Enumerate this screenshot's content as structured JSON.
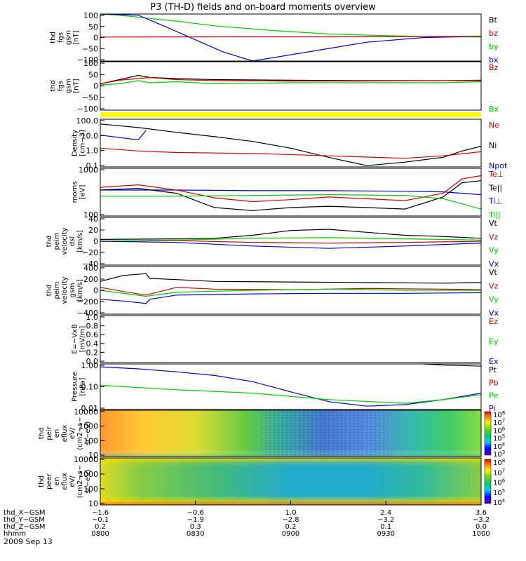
{
  "title": "P3 (TH-D) fields and on-board moments overview",
  "date_label": "2009 Sep 13",
  "colors": {
    "black": "#000000",
    "red": "#cc0000",
    "green": "#00cc00",
    "blue": "#0000cc",
    "yellow": "#ffff00"
  },
  "chart_data": [
    {
      "type": "line",
      "ylabel": [
        "thd",
        "fgs",
        "gsm",
        "[nT]"
      ],
      "yticks": [
        "100",
        "50",
        "0",
        "−50",
        "−100"
      ],
      "ylim": [
        -100,
        100
      ],
      "legend": [
        {
          "name": "Bt",
          "color": "black"
        },
        {
          "name": "bz",
          "color": "red"
        },
        {
          "name": "by",
          "color": "green"
        },
        {
          "name": "bx",
          "color": "blue"
        }
      ],
      "series": [
        {
          "name": "by",
          "color": "green",
          "x": [
            0.0,
            0.5,
            2.0,
            3.0,
            4.5,
            6.0,
            7.5,
            9.0,
            10.0
          ],
          "y": [
            100,
            95,
            70,
            50,
            30,
            15,
            8,
            3,
            2
          ]
        },
        {
          "name": "bx",
          "color": "blue",
          "x": [
            0.0,
            1.0,
            1.8,
            2.5,
            3.2,
            4.0,
            5.5,
            7.0,
            8.5,
            10.0
          ],
          "y": [
            100,
            95,
            40,
            -10,
            -60,
            -100,
            -60,
            -20,
            0,
            5
          ]
        },
        {
          "name": "bz",
          "color": "red",
          "x": [
            0.0,
            3.0,
            6.0,
            10.0
          ],
          "y": [
            2,
            3,
            3,
            5
          ]
        }
      ]
    },
    {
      "type": "line",
      "ylabel": [
        "thd",
        "fgs",
        "gsm",
        "[nT]"
      ],
      "yticks": [
        "100",
        "50",
        "0",
        "−50",
        "−100"
      ],
      "ylim": [
        -120,
        110
      ],
      "legend": [
        {
          "name": "Bz",
          "color": "red"
        },
        {
          "name": "Bx",
          "color": "green"
        }
      ],
      "series": [
        {
          "name": "Bt",
          "color": "black",
          "x": [
            0.0,
            0.5,
            1.0,
            1.3,
            2.0,
            3.0,
            5.0,
            7.0,
            9.0,
            10.0
          ],
          "y": [
            5,
            25,
            45,
            35,
            30,
            25,
            22,
            20,
            20,
            22
          ]
        },
        {
          "name": "Bz",
          "color": "red",
          "x": [
            0.0,
            0.5,
            1.0,
            1.3,
            2.0,
            3.0,
            5.0,
            7.0,
            9.0,
            10.0
          ],
          "y": [
            5,
            22,
            30,
            35,
            25,
            20,
            18,
            18,
            20,
            20
          ]
        },
        {
          "name": "Bx",
          "color": "green",
          "x": [
            0.0,
            0.5,
            1.0,
            1.3,
            2.0,
            3.0,
            5.0,
            7.0,
            9.0,
            10.0
          ],
          "y": [
            0,
            5,
            20,
            10,
            15,
            5,
            10,
            10,
            10,
            15
          ]
        }
      ]
    },
    {
      "type": "line",
      "ylabel": [
        "Density",
        "[cm−3]"
      ],
      "yticks": [
        "100.0",
        "10.0",
        "1.0",
        "0.1"
      ],
      "ylim": [
        0.1,
        100
      ],
      "legend": [
        {
          "name": "Ne",
          "color": "red"
        },
        {
          "name": "Ni",
          "color": "black"
        },
        {
          "name": "Npot",
          "color": "blue"
        }
      ],
      "series": [
        {
          "name": "Ni",
          "color": "black",
          "x": [
            0.0,
            1.0,
            2.0,
            3.0,
            4.0,
            5.0,
            6.0,
            7.0,
            8.0,
            9.0,
            9.5,
            10.0
          ],
          "y": [
            50,
            30,
            15,
            8,
            4,
            1.5,
            0.4,
            0.12,
            0.2,
            0.4,
            1.0,
            2.0
          ]
        },
        {
          "name": "Ne",
          "color": "red",
          "x": [
            0.0,
            1.0,
            2.0,
            4.0,
            6.0,
            8.0,
            9.0,
            10.0
          ],
          "y": [
            1.5,
            1.0,
            0.8,
            0.7,
            0.5,
            0.35,
            0.5,
            0.9
          ]
        },
        {
          "name": "Npot",
          "color": "blue",
          "x": [
            0.0,
            1.0,
            1.2
          ],
          "y": [
            10,
            5,
            20
          ]
        }
      ]
    },
    {
      "type": "line",
      "ylabel": [
        "moms",
        "[eV]"
      ],
      "yticks": [
        "1000",
        "100"
      ],
      "ylim": [
        100,
        1000
      ],
      "legend": [
        {
          "name": "Te⊥",
          "color": "red"
        },
        {
          "name": "Te||",
          "color": "black"
        },
        {
          "name": "Ti⊥",
          "color": "blue"
        },
        {
          "name": "Ti||",
          "color": "green"
        }
      ],
      "series": [
        {
          "name": "Ti⊥",
          "color": "blue",
          "x": [
            0.0,
            2.0,
            4.0,
            6.0,
            8.0,
            9.0,
            9.5,
            10.0
          ],
          "y": [
            350,
            350,
            340,
            340,
            330,
            320,
            300,
            280
          ]
        },
        {
          "name": "Te⊥",
          "color": "red",
          "x": [
            0.0,
            1.0,
            2.0,
            3.0,
            4.0,
            5.0,
            6.0,
            7.0,
            8.0,
            9.0,
            9.5,
            10.0
          ],
          "y": [
            400,
            450,
            350,
            240,
            200,
            220,
            250,
            230,
            210,
            300,
            600,
            700
          ]
        },
        {
          "name": "Te||",
          "color": "black",
          "x": [
            0.0,
            1.0,
            2.0,
            3.0,
            4.0,
            5.0,
            6.0,
            7.0,
            8.0,
            9.0,
            9.5,
            10.0
          ],
          "y": [
            350,
            380,
            300,
            150,
            130,
            150,
            160,
            150,
            140,
            250,
            500,
            550
          ]
        },
        {
          "name": "Ti||",
          "color": "green",
          "x": [
            0.0,
            2.0,
            4.0,
            6.0,
            8.0,
            9.0,
            10.0
          ],
          "y": [
            260,
            260,
            270,
            280,
            270,
            230,
            140
          ]
        }
      ]
    },
    {
      "type": "line",
      "ylabel": [
        "thd",
        "peim",
        "velocity",
        "dsl",
        "[km/s]"
      ],
      "yticks": [
        "40",
        "20",
        "0",
        "−20",
        "−40"
      ],
      "ylim": [
        -40,
        40
      ],
      "legend": [
        {
          "name": "Vt",
          "color": "black"
        },
        {
          "name": "Vz",
          "color": "red"
        },
        {
          "name": "Vy",
          "color": "green"
        },
        {
          "name": "Vx",
          "color": "blue"
        }
      ],
      "series": [
        {
          "name": "Vt",
          "color": "black",
          "x": [
            0.0,
            2.0,
            3.0,
            4.0,
            5.0,
            6.0,
            7.0,
            8.0,
            9.0,
            10.0
          ],
          "y": [
            3,
            4,
            5,
            10,
            18,
            20,
            15,
            10,
            8,
            5
          ]
        },
        {
          "name": "Vz",
          "color": "red",
          "x": [
            0.0,
            2.0,
            4.0,
            6.0,
            8.0,
            10.0
          ],
          "y": [
            0,
            1,
            -2,
            -3,
            -2,
            0
          ]
        },
        {
          "name": "Vy",
          "color": "green",
          "x": [
            0.0,
            2.0,
            4.0,
            6.0,
            8.0,
            10.0
          ],
          "y": [
            0,
            2,
            5,
            6,
            4,
            2
          ]
        },
        {
          "name": "Vx",
          "color": "blue",
          "x": [
            0.0,
            2.0,
            4.0,
            6.0,
            8.0,
            10.0
          ],
          "y": [
            0,
            -2,
            -8,
            -12,
            -8,
            -3
          ]
        }
      ]
    },
    {
      "type": "line",
      "ylabel": [
        "thd",
        "peim",
        "velocity",
        "gsm",
        "[km/s]"
      ],
      "yticks": [
        "400",
        "200",
        "0",
        "−200",
        "−400"
      ],
      "ylim": [
        -400,
        400
      ],
      "legend": [
        {
          "name": "Vt",
          "color": "black"
        },
        {
          "name": "Vz",
          "color": "red"
        },
        {
          "name": "Vy",
          "color": "green"
        },
        {
          "name": "Vx",
          "color": "blue"
        }
      ],
      "series": [
        {
          "name": "Vt",
          "color": "black",
          "x": [
            0.0,
            0.6,
            1.2,
            1.3,
            2.0,
            3.0,
            5.0,
            7.0,
            9.0,
            10.0
          ],
          "y": [
            150,
            250,
            280,
            200,
            180,
            150,
            140,
            130,
            120,
            130
          ]
        },
        {
          "name": "Vz",
          "color": "red",
          "x": [
            0.0,
            0.6,
            1.2,
            2.0,
            3.0,
            5.0,
            7.0,
            9.0,
            10.0
          ],
          "y": [
            50,
            -20,
            -80,
            50,
            20,
            10,
            30,
            20,
            10
          ]
        },
        {
          "name": "Vy",
          "color": "green",
          "x": [
            0.0,
            1.2,
            2.0,
            4.0,
            6.0,
            8.0,
            10.0
          ],
          "y": [
            0,
            -100,
            -30,
            0,
            20,
            0,
            0
          ]
        },
        {
          "name": "Vx",
          "color": "blue",
          "x": [
            0.0,
            0.6,
            1.2,
            1.3,
            2.0,
            4.0,
            6.0,
            8.0,
            10.0
          ],
          "y": [
            -150,
            -180,
            -220,
            -150,
            -80,
            -60,
            -50,
            -50,
            -40
          ]
        }
      ]
    },
    {
      "type": "line",
      "ylabel": [
        "E=−VxB",
        "[mV/m]"
      ],
      "yticks": [
        "1.0",
        "0.8",
        "0.6",
        "0.4",
        "0.2",
        "0.0"
      ],
      "ylim": [
        0,
        1
      ],
      "legend": [
        {
          "name": "Ez",
          "color": "red"
        },
        {
          "name": "Ey",
          "color": "green"
        },
        {
          "name": "Ex",
          "color": "blue"
        }
      ],
      "series": []
    },
    {
      "type": "line",
      "ylabel": [
        "Pressure",
        "[nPa]"
      ],
      "yticks": [
        "1.00",
        "0.10",
        "0.01"
      ],
      "ylim": [
        0.005,
        3
      ],
      "legend": [
        {
          "name": "Pt",
          "color": "black"
        },
        {
          "name": "Pb",
          "color": "red"
        },
        {
          "name": "Pe",
          "color": "green"
        },
        {
          "name": "Pi",
          "color": "blue"
        }
      ],
      "series": [
        {
          "name": "Pi",
          "color": "blue",
          "x": [
            0.0,
            1.0,
            2.0,
            3.0,
            4.0,
            5.0,
            6.0,
            7.0,
            8.0,
            9.0,
            10.0
          ],
          "y": [
            2.0,
            1.5,
            1.0,
            0.6,
            0.25,
            0.06,
            0.015,
            0.008,
            0.01,
            0.02,
            0.05
          ]
        },
        {
          "name": "Pe",
          "color": "green",
          "x": [
            0.0,
            2.0,
            4.0,
            6.0,
            8.0,
            9.0,
            10.0
          ],
          "y": [
            0.15,
            0.08,
            0.05,
            0.02,
            0.012,
            0.02,
            0.04
          ]
        },
        {
          "name": "Pt",
          "color": "black",
          "x": [
            8.5,
            9.0,
            9.5,
            10.0
          ],
          "y": [
            3,
            2.6,
            2.4,
            2.2
          ]
        }
      ]
    },
    {
      "type": "heatmap",
      "ylabel": [
        "thd",
        "peir",
        "en",
        "eflux",
        "eV/",
        "(cm2−s−",
        "sr−eV)"
      ],
      "yticks": [
        "10000",
        "1000",
        "100",
        "10"
      ],
      "colorbar_ticks": [
        "10^8",
        "10^7",
        "10^6",
        "10^5",
        "10^4",
        "10^3"
      ]
    },
    {
      "type": "heatmap",
      "ylabel": [
        "thd",
        "peer",
        "en",
        "eflux",
        "eV/",
        "(cm2−s−",
        "sr−eV)"
      ],
      "yticks": [
        "10000",
        "1000",
        "100",
        "10"
      ],
      "colorbar_ticks": [
        "10^8",
        "10^7",
        "10^6",
        "10^5",
        "10^4"
      ]
    }
  ],
  "xaxis": {
    "row_labels": [
      "thd_X−GSM",
      "thd_Y−GSM",
      "thd_Z−GSM",
      "hhmm"
    ],
    "columns": [
      {
        "vals": [
          "−1.6",
          "−0.1",
          "0.2",
          "0800"
        ]
      },
      {
        "vals": [
          "−0.6",
          "−1.9",
          "0.3",
          "0830"
        ]
      },
      {
        "vals": [
          "1.0",
          "−2.8",
          "0.2",
          "0900"
        ]
      },
      {
        "vals": [
          "2.4",
          "−3.2",
          "0.1",
          "0930"
        ]
      },
      {
        "vals": [
          "3.6",
          "−3.2",
          "0.0",
          "1000"
        ]
      }
    ]
  }
}
